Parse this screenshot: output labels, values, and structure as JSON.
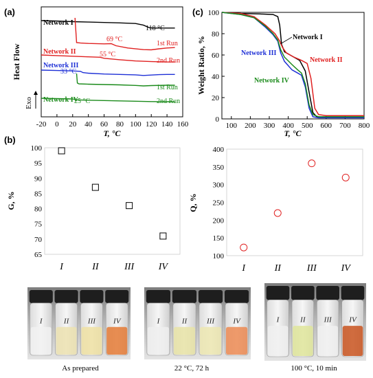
{
  "panels": {
    "a": {
      "label": "(a)"
    },
    "b": {
      "label": "(b)"
    },
    "c": {
      "label": "(c)"
    }
  },
  "colors": {
    "network_I": "#000000",
    "network_II": "#e02020",
    "network_III": "#1d2fd6",
    "network_IV": "#1a8a1a",
    "marker_G": "#000000",
    "marker_Q": "#e02020"
  },
  "chart_data": [
    {
      "id": "dsc",
      "type": "line",
      "xlabel": "T, °C",
      "ylabel": "Heat Flow",
      "xlim": [
        -20,
        160
      ],
      "xticks": [
        -20,
        0,
        20,
        40,
        60,
        80,
        100,
        120,
        140,
        160
      ],
      "exo_label": "Exo",
      "series": [
        {
          "name": "Network I",
          "color": "#000000",
          "annotation": "118 °C",
          "x": [
            -20,
            0,
            20,
            40,
            60,
            80,
            100,
            110,
            118,
            125,
            140,
            150
          ],
          "y": [
            0.0,
            -0.2,
            -0.5,
            -0.7,
            -0.9,
            -1.1,
            -1.4,
            -2.2,
            -3.5,
            -3.6,
            -3.6,
            -3.6
          ]
        },
        {
          "name": "Network II",
          "run": "1st Run",
          "color": "#e02020",
          "annotation": "69 °C",
          "x": [
            23,
            25,
            30,
            40,
            60,
            69,
            75,
            90,
            110,
            120,
            130,
            140,
            150
          ],
          "y": [
            12.0,
            0.0,
            -0.2,
            -0.4,
            -0.6,
            -0.5,
            -1.5,
            -2.6,
            -3.4,
            -3.5,
            -3.0,
            -2.6,
            -2.4
          ]
        },
        {
          "name": "Network II",
          "run": "2nd Run",
          "color": "#e02020",
          "annotation": "55 °C",
          "x": [
            -20,
            0,
            20,
            40,
            55,
            60,
            80,
            100,
            120,
            140,
            150
          ],
          "y": [
            0.0,
            -0.3,
            -0.6,
            -0.9,
            -1.1,
            -1.6,
            -2.3,
            -2.9,
            -3.2,
            -3.4,
            -3.4
          ]
        },
        {
          "name": "Network III",
          "color": "#1d2fd6",
          "annotation": "33 °C",
          "x": [
            -20,
            0,
            20,
            30,
            33,
            40,
            60,
            80,
            100,
            110,
            120,
            130,
            140,
            150
          ],
          "y": [
            0.0,
            -0.2,
            -0.4,
            -0.6,
            -1.2,
            -1.5,
            -1.9,
            -2.1,
            -2.3,
            -2.6,
            -2.4,
            -2.2,
            -2.1,
            -2.1
          ]
        },
        {
          "name": "Network IV",
          "run": "1st Run",
          "color": "#1a8a1a",
          "x": [
            25,
            26,
            28,
            40,
            60,
            80,
            100,
            110,
            120,
            140,
            150
          ],
          "y": [
            6.0,
            0.5,
            0.0,
            -0.2,
            -0.4,
            -0.6,
            -0.9,
            -1.2,
            -1.0,
            -0.8,
            -0.8
          ]
        },
        {
          "name": "Network IV",
          "run": "2nd Run",
          "color": "#1a8a1a",
          "annotation": "25 °C",
          "x": [
            -20,
            0,
            20,
            25,
            40,
            60,
            80,
            100,
            120,
            140,
            150
          ],
          "y": [
            0.0,
            -0.2,
            -0.4,
            -0.9,
            -1.1,
            -1.3,
            -1.5,
            -1.7,
            -1.9,
            -2.0,
            -2.0
          ]
        }
      ]
    },
    {
      "id": "tga",
      "type": "line",
      "xlabel": "T, °C",
      "ylabel": "Weight Ratio, %",
      "xlim": [
        50,
        800
      ],
      "ylim": [
        0,
        100
      ],
      "xticks": [
        100,
        200,
        300,
        400,
        500,
        600,
        700,
        800
      ],
      "yticks": [
        0,
        20,
        40,
        60,
        80,
        100
      ],
      "series": [
        {
          "name": "Network I",
          "color": "#000000",
          "x": [
            50,
            150,
            250,
            320,
            345,
            355,
            365,
            380,
            420,
            460,
            490,
            510,
            530,
            550,
            600,
            800
          ],
          "y": [
            100,
            99,
            98.5,
            98,
            96,
            88,
            70,
            63,
            59,
            55,
            45,
            25,
            6,
            2,
            1.5,
            1.5
          ]
        },
        {
          "name": "Network II",
          "color": "#e02020",
          "x": [
            50,
            150,
            220,
            280,
            330,
            355,
            370,
            390,
            430,
            470,
            500,
            520,
            540,
            560,
            600,
            800
          ],
          "y": [
            100,
            99,
            96,
            88,
            80,
            73,
            67,
            62,
            58,
            55,
            52,
            38,
            10,
            4,
            3,
            3
          ]
        },
        {
          "name": "Network III",
          "color": "#1d2fd6",
          "x": [
            50,
            150,
            220,
            280,
            320,
            345,
            360,
            380,
            420,
            450,
            470,
            490,
            510,
            530,
            560,
            800
          ],
          "y": [
            100,
            98,
            95,
            86,
            79,
            73,
            62,
            54,
            46,
            43,
            41,
            30,
            10,
            2,
            1,
            1
          ]
        },
        {
          "name": "Network IV",
          "color": "#1a8a1a",
          "x": [
            50,
            150,
            220,
            280,
            320,
            345,
            360,
            380,
            420,
            450,
            470,
            490,
            510,
            530,
            560,
            800
          ],
          "y": [
            100,
            98,
            95,
            87,
            80,
            74,
            65,
            58,
            51,
            46,
            43,
            33,
            13,
            4,
            2,
            2
          ]
        }
      ]
    },
    {
      "id": "gel",
      "type": "scatter",
      "ylabel": "G, %",
      "categories": [
        "I",
        "II",
        "III",
        "IV"
      ],
      "ylim": [
        65,
        100
      ],
      "yticks": [
        65,
        70,
        75,
        80,
        85,
        90,
        95,
        100
      ],
      "values": [
        99,
        87,
        81,
        71
      ],
      "marker": "square"
    },
    {
      "id": "swelling",
      "type": "scatter",
      "ylabel": "Q, %",
      "categories": [
        "I",
        "II",
        "III",
        "IV"
      ],
      "ylim": [
        100,
        400
      ],
      "yticks": [
        100,
        150,
        200,
        250,
        300,
        350,
        400
      ],
      "values": [
        123,
        220,
        360,
        320
      ],
      "marker": "circle"
    }
  ],
  "photos": [
    {
      "vials": [
        "I",
        "II",
        "III",
        "IV"
      ],
      "caption": "As prepared"
    },
    {
      "vials": [
        "I",
        "II",
        "III",
        "IV"
      ],
      "caption": "22 °C, 72 h"
    },
    {
      "vials": [
        "I",
        "II",
        "III",
        "IV"
      ],
      "caption": "100 °C, 10 min"
    }
  ],
  "dsc_labels": {
    "net1": "Network I",
    "net2": "Network II",
    "net3": "Network III",
    "net4": "Network IV",
    "t118": "118 °C",
    "t69": "69 °C",
    "t55": "55 °C",
    "t33": "33 °C",
    "t25": "25 °C",
    "run1": "1st Run",
    "run2": "2nd Run"
  },
  "tga_labels": {
    "net1": "Network I",
    "net2": "Network II",
    "net3": "Network III",
    "net4": "Network IV"
  }
}
